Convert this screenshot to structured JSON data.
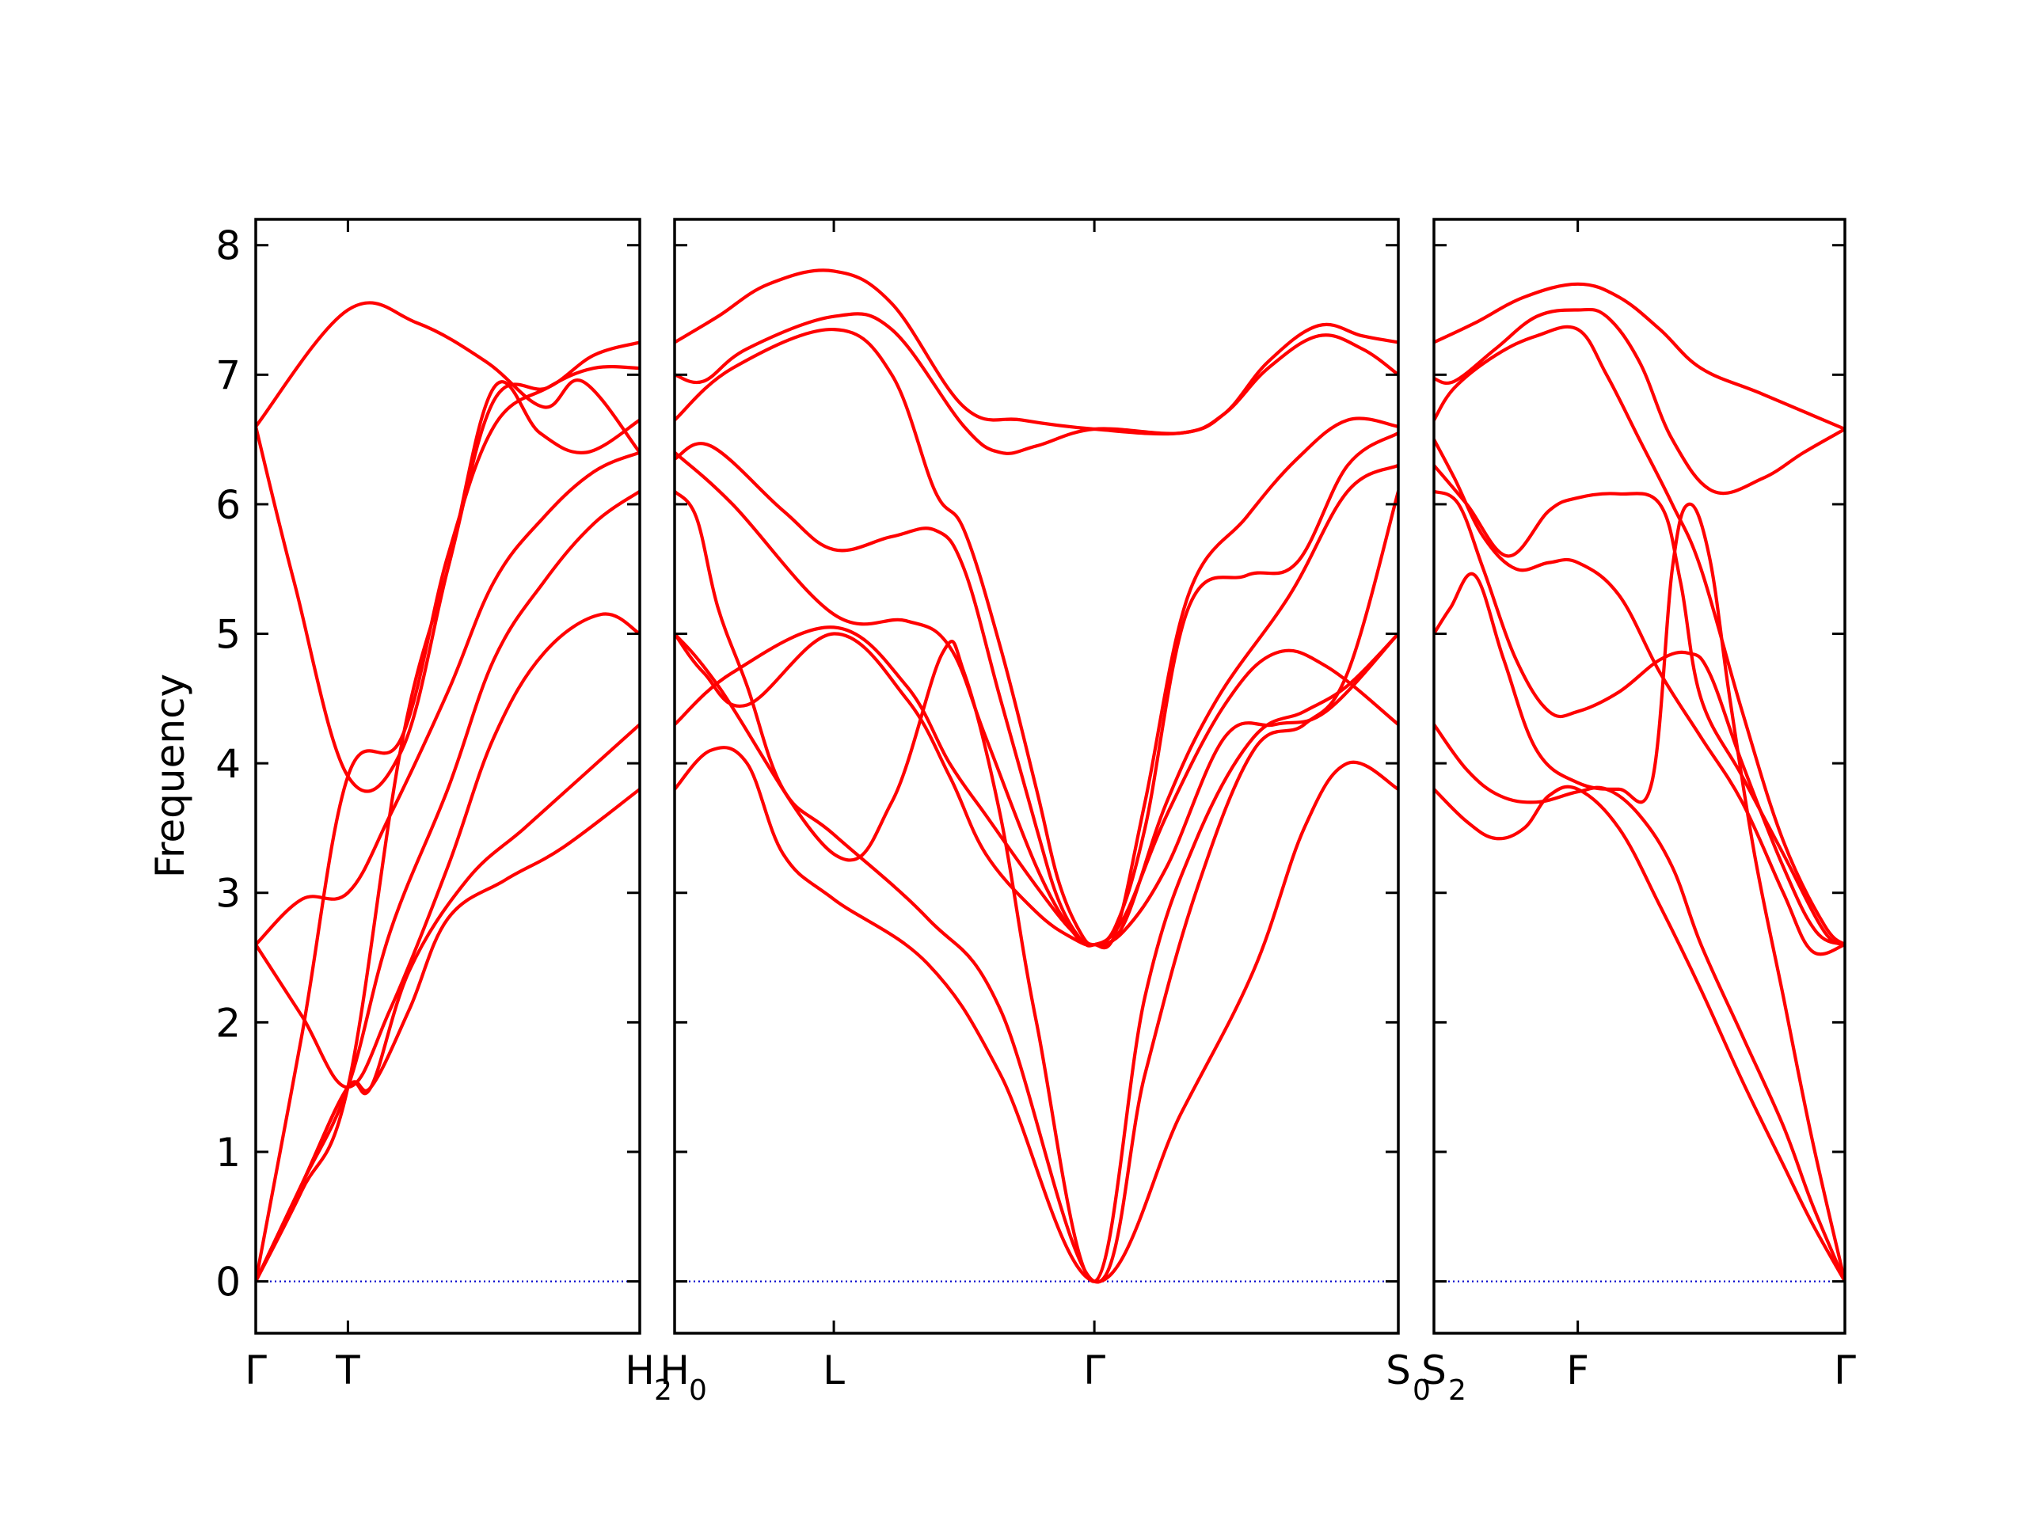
{
  "chart_data": {
    "type": "line",
    "ylabel": "Frequency",
    "ylim": [
      -0.4,
      8.2
    ],
    "yticks": [
      "0",
      "1",
      "2",
      "3",
      "4",
      "5",
      "6",
      "7",
      "8"
    ],
    "line_color": "#ff0000",
    "zero_line_color": "#0000cc",
    "grid": false,
    "panels": [
      {
        "xticks": [
          {
            "x": 0,
            "label": "Γ"
          },
          {
            "x": 0.24,
            "label": "T"
          },
          {
            "x": 1,
            "label": "H",
            "sub": "2"
          }
        ],
        "series": [
          {
            "x": [
              0,
              0.24,
              0.42,
              0.6,
              0.75,
              0.85,
              1
            ],
            "values": [
              6.6,
              7.5,
              7.4,
              7.1,
              6.75,
              6.95,
              6.4
            ]
          },
          {
            "x": [
              0,
              0.1,
              0.24,
              0.38,
              0.5,
              0.62,
              0.74,
              0.86,
              1
            ],
            "values": [
              6.6,
              5.4,
              3.9,
              4.1,
              5.5,
              6.9,
              6.55,
              6.4,
              6.65
            ]
          },
          {
            "x": [
              0,
              0.12,
              0.24,
              0.38,
              0.5,
              0.62,
              0.76,
              0.88,
              1
            ],
            "values": [
              0,
              1.9,
              3.9,
              4.2,
              5.6,
              6.6,
              6.9,
              7.05,
              7.05
            ]
          },
          {
            "x": [
              0,
              0.12,
              0.24,
              0.38,
              0.5,
              0.62,
              0.76,
              0.88,
              1
            ],
            "values": [
              0,
              0.7,
              1.5,
              4.15,
              5.5,
              6.8,
              6.9,
              7.15,
              7.25
            ]
          },
          {
            "x": [
              0,
              0.12,
              0.24,
              0.35,
              0.5,
              0.62,
              0.75,
              0.88,
              1
            ],
            "values": [
              2.6,
              2.95,
              3.0,
              3.6,
              4.55,
              5.4,
              5.9,
              6.25,
              6.4
            ]
          },
          {
            "x": [
              0,
              0.12,
              0.24,
              0.35,
              0.5,
              0.62,
              0.75,
              0.88,
              1
            ],
            "values": [
              0,
              0.75,
              1.5,
              2.7,
              3.8,
              4.8,
              5.4,
              5.85,
              6.1
            ]
          },
          {
            "x": [
              0,
              0.12,
              0.24,
              0.35,
              0.5,
              0.62,
              0.75,
              0.9,
              1
            ],
            "values": [
              2.6,
              2.05,
              1.5,
              2.1,
              3.2,
              4.2,
              4.85,
              5.15,
              5.0
            ]
          },
          {
            "x": [
              0,
              0.12,
              0.24,
              0.3,
              0.4,
              0.55,
              0.7,
              0.85,
              1
            ],
            "values": [
              0,
              0.75,
              1.5,
              1.5,
              2.4,
              3.1,
              3.5,
              3.9,
              4.3
            ]
          },
          {
            "x": [
              0,
              0.12,
              0.24,
              0.3,
              0.4,
              0.5,
              0.65,
              0.8,
              1
            ],
            "values": [
              0,
              0.75,
              1.5,
              1.5,
              2.1,
              2.8,
              3.1,
              3.35,
              3.8
            ]
          }
        ]
      },
      {
        "xticks": [
          {
            "x": 0,
            "label": "H",
            "sub": "0"
          },
          {
            "x": 0.22,
            "label": "L"
          },
          {
            "x": 0.58,
            "label": "Γ"
          },
          {
            "x": 1,
            "label": "S",
            "sub": "0"
          }
        ],
        "series": [
          {
            "x": [
              0,
              0.06,
              0.13,
              0.22,
              0.3,
              0.4,
              0.48,
              0.58,
              0.7,
              0.76,
              0.82,
              0.89,
              0.95,
              1
            ],
            "values": [
              7.25,
              7.45,
              7.7,
              7.8,
              7.55,
              6.75,
              6.65,
              6.58,
              6.55,
              6.7,
              7.1,
              7.38,
              7.3,
              7.25
            ]
          },
          {
            "x": [
              0,
              0.04,
              0.1,
              0.22,
              0.3,
              0.4,
              0.45,
              0.5,
              0.58,
              0.7,
              0.76,
              0.82,
              0.89,
              0.95,
              1
            ],
            "values": [
              7.0,
              6.95,
              7.2,
              7.45,
              7.35,
              6.6,
              6.4,
              6.45,
              6.58,
              6.55,
              6.7,
              7.05,
              7.3,
              7.2,
              7.0
            ]
          },
          {
            "x": [
              0,
              0.08,
              0.22,
              0.3,
              0.36,
              0.4,
              0.45,
              0.5,
              0.53,
              0.56,
              0.58,
              0.61,
              0.65,
              0.71,
              0.79,
              0.86,
              0.93,
              1
            ],
            "values": [
              6.65,
              7.05,
              7.35,
              7.0,
              6.1,
              5.8,
              4.9,
              3.8,
              3.1,
              2.7,
              2.6,
              2.7,
              3.7,
              5.3,
              5.9,
              6.35,
              6.65,
              6.6
            ]
          },
          {
            "x": [
              0,
              0.05,
              0.15,
              0.22,
              0.3,
              0.36,
              0.4,
              0.45,
              0.5,
              0.53,
              0.56,
              0.58,
              0.61,
              0.65,
              0.71,
              0.79,
              0.86,
              0.93,
              1
            ],
            "values": [
              6.35,
              6.45,
              5.95,
              5.65,
              5.75,
              5.8,
              5.5,
              4.5,
              3.5,
              2.95,
              2.65,
              2.6,
              2.75,
              3.5,
              5.2,
              5.45,
              5.55,
              6.3,
              6.55
            ]
          },
          {
            "x": [
              0,
              0.08,
              0.22,
              0.32,
              0.38,
              0.43,
              0.5,
              0.55,
              0.58,
              0.62,
              0.68,
              0.75,
              0.85,
              0.93,
              1
            ],
            "values": [
              6.4,
              6.0,
              5.15,
              5.1,
              4.9,
              4.2,
              3.2,
              2.7,
              2.6,
              2.75,
              3.7,
              4.5,
              5.3,
              6.1,
              6.3
            ]
          },
          {
            "x": [
              0,
              0.08,
              0.22,
              0.32,
              0.38,
              0.43,
              0.5,
              0.55,
              0.58,
              0.62,
              0.68,
              0.76,
              0.83,
              0.9,
              1
            ],
            "values": [
              4.3,
              4.7,
              5.05,
              4.6,
              4.0,
              3.6,
              3.05,
              2.7,
              2.6,
              2.8,
              3.6,
              4.45,
              4.85,
              4.75,
              4.3
            ]
          },
          {
            "x": [
              0,
              0.04,
              0.1,
              0.22,
              0.32,
              0.38,
              0.43,
              0.5,
              0.55,
              0.58,
              0.62,
              0.68,
              0.76,
              0.83,
              0.9,
              1
            ],
            "values": [
              5.0,
              4.7,
              4.45,
              5.0,
              4.5,
              3.9,
              3.3,
              2.85,
              2.65,
              2.6,
              2.7,
              3.2,
              4.2,
              4.3,
              4.4,
              5.0
            ]
          },
          {
            "x": [
              0,
              0.03,
              0.06,
              0.1,
              0.15,
              0.22,
              0.35,
              0.45,
              0.58,
              0.65,
              0.72,
              0.8,
              0.87,
              0.93,
              1
            ],
            "values": [
              6.1,
              5.9,
              5.2,
              4.6,
              3.8,
              3.45,
              2.8,
              2.1,
              0,
              1.6,
              3.0,
              4.1,
              4.3,
              4.7,
              6.1
            ]
          },
          {
            "x": [
              0,
              0.05,
              0.1,
              0.15,
              0.22,
              0.35,
              0.45,
              0.58,
              0.7,
              0.8,
              0.87,
              0.93,
              1
            ],
            "values": [
              3.8,
              4.1,
              4.0,
              3.3,
              2.95,
              2.45,
              1.6,
              0,
              1.3,
              2.4,
              3.5,
              4.0,
              3.8
            ]
          },
          {
            "x": [
              0,
              0.06,
              0.22,
              0.3,
              0.37,
              0.4,
              0.45,
              0.5,
              0.58,
              0.65,
              0.72,
              0.8,
              0.87,
              0.93,
              1
            ],
            "values": [
              5.0,
              4.6,
              3.3,
              3.7,
              4.85,
              4.7,
              3.6,
              2.0,
              0,
              2.2,
              3.4,
              4.2,
              4.4,
              4.6,
              5.0
            ]
          }
        ]
      },
      {
        "xticks": [
          {
            "x": 0,
            "label": "S",
            "sub": "2"
          },
          {
            "x": 0.35,
            "label": "F"
          },
          {
            "x": 1,
            "label": "Γ"
          }
        ],
        "series": [
          {
            "x": [
              0,
              0.1,
              0.22,
              0.35,
              0.45,
              0.55,
              0.65,
              0.8,
              1
            ],
            "values": [
              7.25,
              7.4,
              7.6,
              7.7,
              7.6,
              7.35,
              7.05,
              6.85,
              6.58
            ]
          },
          {
            "x": [
              0,
              0.05,
              0.15,
              0.25,
              0.35,
              0.42,
              0.5,
              0.58,
              0.68,
              0.8,
              0.9,
              1
            ],
            "values": [
              6.97,
              6.95,
              7.2,
              7.45,
              7.5,
              7.45,
              7.1,
              6.5,
              6.1,
              6.2,
              6.4,
              6.58
            ]
          },
          {
            "x": [
              0,
              0.05,
              0.15,
              0.25,
              0.35,
              0.42,
              0.5,
              0.58,
              0.65,
              0.75,
              0.85,
              0.95,
              1
            ],
            "values": [
              6.65,
              6.9,
              7.15,
              7.3,
              7.35,
              7.0,
              6.5,
              6.0,
              5.5,
              4.4,
              3.4,
              2.75,
              2.6
            ]
          },
          {
            "x": [
              0,
              0.08,
              0.18,
              0.28,
              0.35,
              0.45,
              0.55,
              0.6,
              0.65,
              0.75,
              0.85,
              0.95,
              1
            ],
            "values": [
              6.3,
              6.0,
              5.6,
              5.95,
              6.05,
              6.08,
              6.0,
              5.4,
              4.5,
              3.9,
              3.3,
              2.7,
              2.6
            ]
          },
          {
            "x": [
              0,
              0.05,
              0.12,
              0.2,
              0.28,
              0.35,
              0.45,
              0.55,
              0.65,
              0.75,
              0.85,
              0.92,
              1
            ],
            "values": [
              6.5,
              6.2,
              5.75,
              5.5,
              5.55,
              5.55,
              5.3,
              4.7,
              4.2,
              3.7,
              3.0,
              2.55,
              2.6
            ]
          },
          {
            "x": [
              0,
              0.06,
              0.12,
              0.2,
              0.28,
              0.35,
              0.45,
              0.55,
              0.62,
              0.67,
              0.75,
              0.85,
              0.93,
              1
            ],
            "values": [
              6.1,
              6.0,
              5.5,
              4.8,
              4.4,
              4.4,
              4.55,
              4.8,
              4.85,
              4.7,
              4.0,
              3.2,
              2.7,
              2.6
            ]
          },
          {
            "x": [
              0,
              0.04,
              0.1,
              0.17,
              0.25,
              0.35,
              0.45,
              0.53,
              0.58,
              0.62,
              0.67,
              0.72,
              0.78,
              0.85,
              0.92,
              1
            ],
            "values": [
              5.0,
              5.2,
              5.45,
              4.8,
              4.1,
              3.85,
              3.8,
              3.85,
              5.5,
              6.0,
              5.6,
              4.5,
              3.3,
              2.2,
              1.1,
              0
            ]
          },
          {
            "x": [
              0,
              0.08,
              0.16,
              0.25,
              0.35,
              0.42,
              0.5,
              0.58,
              0.65,
              0.75,
              0.85,
              0.92,
              1
            ],
            "values": [
              4.3,
              3.95,
              3.75,
              3.7,
              3.78,
              3.8,
              3.6,
              3.2,
              2.6,
              1.9,
              1.2,
              0.6,
              0
            ]
          },
          {
            "x": [
              0,
              0.08,
              0.15,
              0.22,
              0.28,
              0.35,
              0.45,
              0.55,
              0.65,
              0.75,
              0.85,
              0.92,
              1
            ],
            "values": [
              3.8,
              3.55,
              3.42,
              3.5,
              3.75,
              3.8,
              3.5,
              2.9,
              2.25,
              1.55,
              0.9,
              0.45,
              0
            ]
          }
        ]
      }
    ]
  }
}
